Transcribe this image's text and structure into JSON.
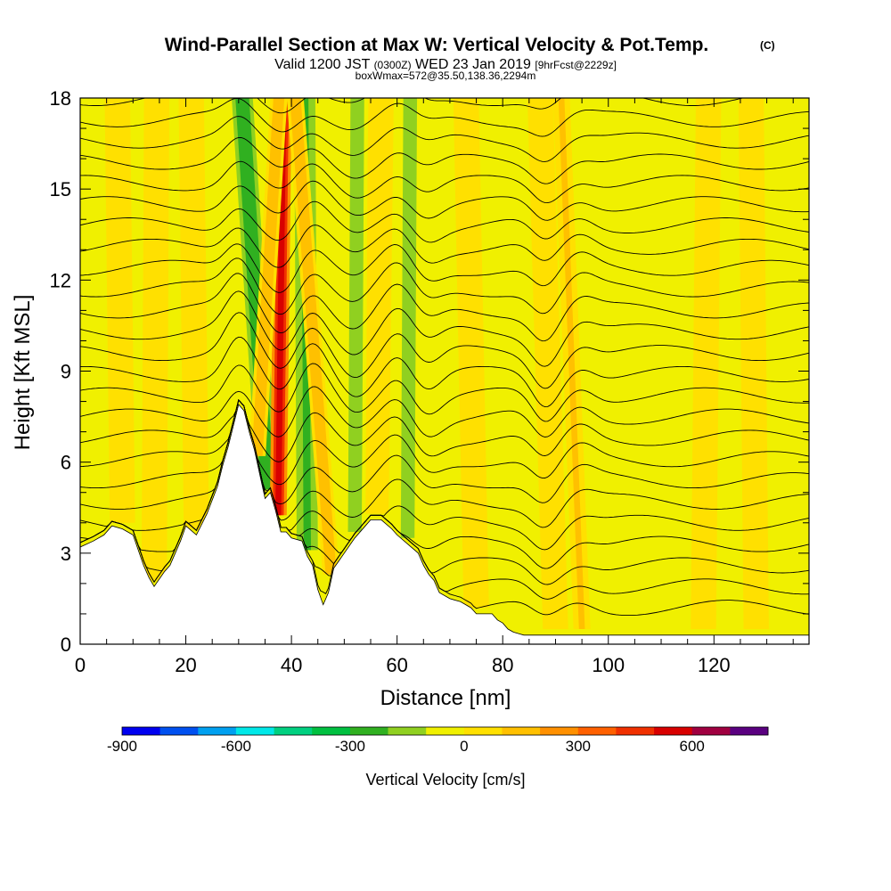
{
  "chart_data": {
    "type": "heatmap",
    "title": "Wind-Parallel Section at Max W: Vertical Velocity & Pot.Temp.",
    "title_mark": "(C)",
    "subtitle_parts": [
      "Valid 1200 JST",
      "(0300Z)",
      "WED 23 Jan 2019",
      "[9hrFcst@2229z]"
    ],
    "subtitle2": "boxWmax=572@35.50,138.36,2294m",
    "xlabel": "Distance [nm]",
    "ylabel": "Height [Kft MSL]",
    "xlim": [
      0,
      138
    ],
    "ylim": [
      0,
      18
    ],
    "x_ticks": [
      0,
      20,
      40,
      60,
      80,
      100,
      120
    ],
    "y_ticks": [
      0,
      3,
      6,
      9,
      12,
      15,
      18
    ],
    "colorbar": {
      "label": "Vertical Velocity [cm/s]",
      "ticks": [
        -900,
        -600,
        -300,
        0,
        300,
        600
      ],
      "colors": [
        "#0000f0",
        "#0050f0",
        "#00a0f0",
        "#00e8e8",
        "#00d080",
        "#00c040",
        "#30b020",
        "#90d020",
        "#f0f000",
        "#ffe000",
        "#ffc000",
        "#ff9000",
        "#ff6000",
        "#f03000",
        "#d80000",
        "#a00040",
        "#5a0080"
      ],
      "range": [
        -900,
        800
      ]
    },
    "updraft_columns": [
      {
        "x_base": 37.5,
        "x_top": 38.5,
        "w": 0.5
      },
      {
        "x_base": 33.5,
        "x_top": 37.8,
        "w": 0.15
      },
      {
        "x_base": 47.5,
        "x_top": 40.5,
        "w": 0.15
      },
      {
        "x_base": 95.0,
        "x_top": 91.0,
        "w": 0.1
      }
    ],
    "downdraft_columns": [
      {
        "x_base": 35.5,
        "x_top": 30.5,
        "w": -0.3
      },
      {
        "x_base": 43.0,
        "x_top": 42.5,
        "w": -0.22
      },
      {
        "x_base": 52.0,
        "x_top": 52.5,
        "w": -0.15
      },
      {
        "x_base": 62.0,
        "x_top": 62.5,
        "w": -0.2
      }
    ],
    "terrain": {
      "x": [
        0,
        2.5,
        4.5,
        6,
        8,
        10,
        12,
        13,
        14,
        16,
        17,
        19,
        20,
        22,
        24,
        26,
        27,
        28,
        30,
        31,
        32,
        33,
        34,
        35,
        36,
        37,
        38,
        39,
        40,
        42,
        43,
        44,
        45,
        46,
        47,
        48,
        50,
        52,
        54,
        55,
        57,
        59,
        60,
        62,
        64,
        65,
        66,
        67,
        68,
        70,
        72,
        74,
        75,
        78,
        79,
        80,
        81,
        82,
        83,
        84,
        85,
        86,
        138
      ],
      "y": [
        3.2,
        3.4,
        3.6,
        3.9,
        3.8,
        3.6,
        2.6,
        2.2,
        1.9,
        2.4,
        2.6,
        3.4,
        3.9,
        3.6,
        4.3,
        5.2,
        5.9,
        6.5,
        7.9,
        7.7,
        7.0,
        6.4,
        5.6,
        4.8,
        5.0,
        4.4,
        3.7,
        3.7,
        3.5,
        3.4,
        2.9,
        2.6,
        1.8,
        1.3,
        1.7,
        2.5,
        3.0,
        3.5,
        3.9,
        4.1,
        4.1,
        3.8,
        3.6,
        3.3,
        3.0,
        2.6,
        2.3,
        2.1,
        1.7,
        1.5,
        1.4,
        1.2,
        1.0,
        1.0,
        0.8,
        0.7,
        0.5,
        0.4,
        0.35,
        0.3,
        0.3,
        0.3,
        0.3
      ]
    },
    "theta_contours": {
      "base_heights": [
        1.2,
        1.9,
        2.6,
        3.3,
        4.0,
        4.7,
        5.4,
        6.1,
        6.8,
        7.5,
        8.2,
        8.9,
        9.6,
        10.3,
        11.0,
        11.7,
        12.4,
        13.1,
        13.8,
        14.5,
        15.2,
        15.9,
        16.6,
        17.3,
        18.0
      ]
    }
  }
}
